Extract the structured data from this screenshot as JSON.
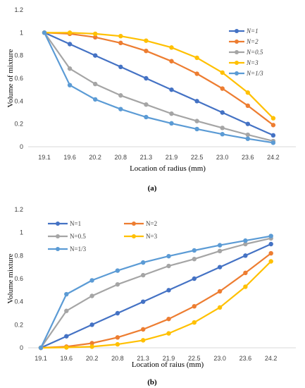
{
  "chart_data": [
    {
      "type": "line",
      "panel_label": "(a)",
      "xlabel": "Location of radius (mm)",
      "ylabel": "Volume of mixture",
      "categories": [
        "19.1",
        "19.6",
        "20.2",
        "20.8",
        "21.3",
        "21.9",
        "22.5",
        "23.0",
        "23.6",
        "24.2"
      ],
      "yticks": [
        "0",
        "0.2",
        "0.4",
        "0.6",
        "0.8",
        "1",
        "1.2"
      ],
      "ylim": [
        0,
        1.2
      ],
      "grid": false,
      "legend_position": "right",
      "series": [
        {
          "name": "N=1",
          "color": "#4472C4",
          "values": [
            1.0,
            0.9,
            0.8,
            0.7,
            0.6,
            0.5,
            0.4,
            0.3,
            0.2,
            0.1
          ]
        },
        {
          "name": "N=2",
          "color": "#ED7D31",
          "values": [
            1.0,
            0.99,
            0.96,
            0.91,
            0.84,
            0.75,
            0.64,
            0.51,
            0.36,
            0.19
          ]
        },
        {
          "name": "N=0.5",
          "color": "#A5A5A5",
          "values": [
            1.0,
            0.685,
            0.55,
            0.45,
            0.37,
            0.29,
            0.225,
            0.165,
            0.105,
            0.05
          ]
        },
        {
          "name": "N=3",
          "color": "#FFC000",
          "values": [
            1.0,
            1.0,
            0.99,
            0.97,
            0.93,
            0.87,
            0.78,
            0.65,
            0.475,
            0.25
          ]
        },
        {
          "name": "N=1/3",
          "color": "#5B9BD5",
          "values": [
            1.0,
            0.54,
            0.415,
            0.33,
            0.26,
            0.205,
            0.155,
            0.11,
            0.07,
            0.035
          ]
        }
      ]
    },
    {
      "type": "line",
      "panel_label": "(b)",
      "xlabel": "Location of raius (mm)",
      "ylabel": "Volume mixture",
      "categories": [
        "19.1",
        "19.6",
        "20.2",
        "20.8",
        "21.3",
        "21.9",
        "22.5",
        "23.0",
        "23.6",
        "24.2"
      ],
      "yticks": [
        "0",
        "0.2",
        "0.4",
        "0.6",
        "0.8",
        "1",
        "1.2"
      ],
      "ylim": [
        0,
        1.2
      ],
      "grid": false,
      "legend_position": "top-left",
      "series": [
        {
          "name": "N=1",
          "color": "#4472C4",
          "values": [
            0.0,
            0.1,
            0.2,
            0.3,
            0.4,
            0.5,
            0.6,
            0.7,
            0.8,
            0.9
          ]
        },
        {
          "name": "N=2",
          "color": "#ED7D31",
          "values": [
            0.0,
            0.01,
            0.04,
            0.09,
            0.16,
            0.25,
            0.36,
            0.49,
            0.65,
            0.82
          ]
        },
        {
          "name": "N=0.5",
          "color": "#A5A5A5",
          "values": [
            0.0,
            0.32,
            0.45,
            0.55,
            0.63,
            0.71,
            0.77,
            0.84,
            0.9,
            0.95
          ]
        },
        {
          "name": "N=3",
          "color": "#FFC000",
          "values": [
            0.0,
            0.003,
            0.01,
            0.03,
            0.065,
            0.125,
            0.22,
            0.35,
            0.53,
            0.75
          ]
        },
        {
          "name": "N=1/3",
          "color": "#5B9BD5",
          "values": [
            0.0,
            0.465,
            0.585,
            0.67,
            0.74,
            0.795,
            0.845,
            0.89,
            0.93,
            0.97
          ]
        }
      ]
    }
  ]
}
